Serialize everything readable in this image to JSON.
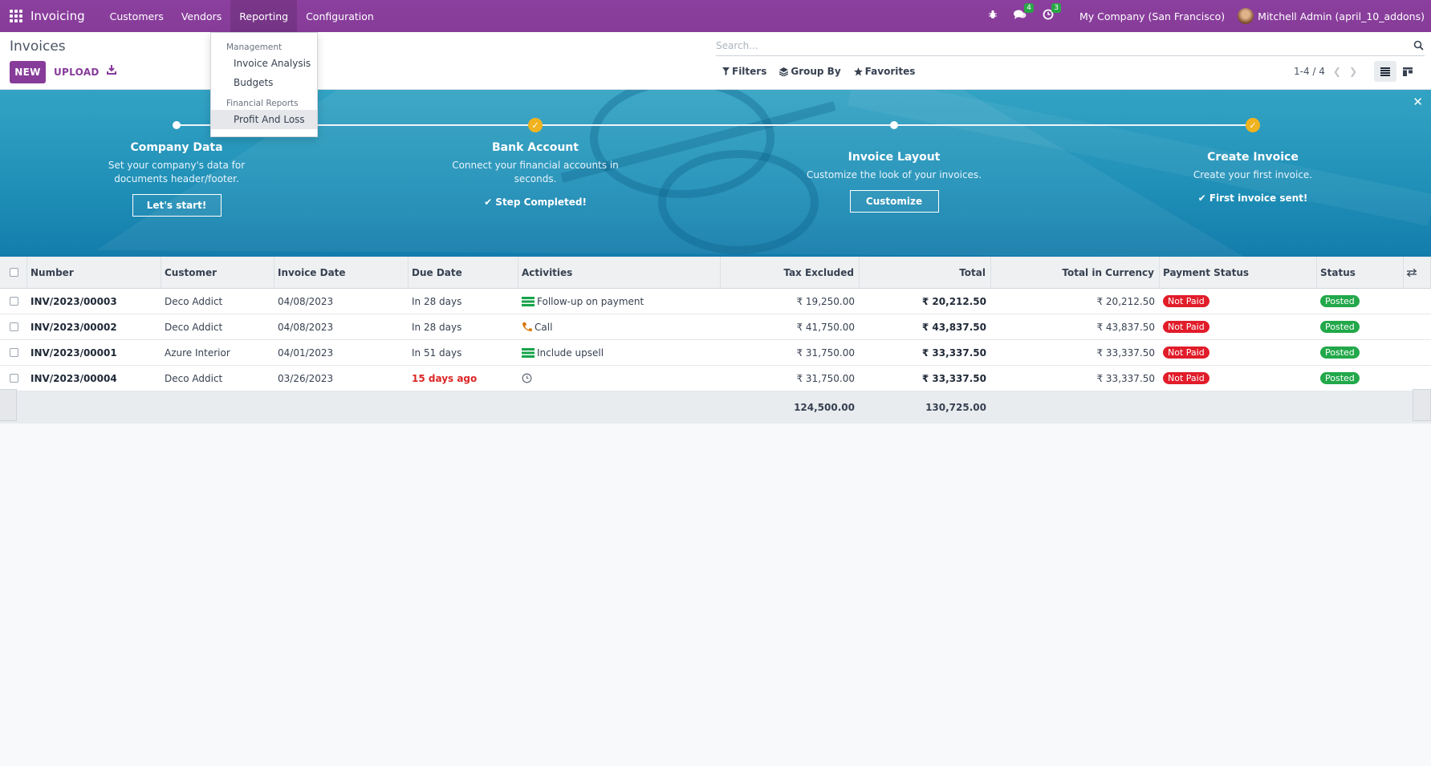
{
  "nav": {
    "app_name": "Invoicing",
    "menu": [
      "Customers",
      "Vendors",
      "Reporting",
      "Configuration"
    ],
    "messages_count": "4",
    "activities_count": "3",
    "company": "My Company (San Francisco)",
    "user": "Mitchell Admin (april_10_addons)"
  },
  "dropdown": {
    "section1": "Management",
    "items1": [
      "Invoice Analysis",
      "Budgets"
    ],
    "section2": "Financial Reports",
    "items2": [
      "Profit And Loss"
    ]
  },
  "control": {
    "title": "Invoices",
    "new_label": "NEW",
    "upload_label": "UPLOAD",
    "search_placeholder": "Search...",
    "filters_label": "Filters",
    "groupby_label": "Group By",
    "favorites_label": "Favorites",
    "pager": "1-4 / 4"
  },
  "onboarding": {
    "steps": [
      {
        "title": "Company Data",
        "desc": "Set your company's data for documents header/footer.",
        "action": "Let's start!"
      },
      {
        "title": "Bank Account",
        "desc": "Connect your financial accounts in seconds.",
        "action": "Step Completed!"
      },
      {
        "title": "Invoice Layout",
        "desc": "Customize the look of your invoices.",
        "action": "Customize"
      },
      {
        "title": "Create Invoice",
        "desc": "Create your first invoice.",
        "action": "First invoice sent!"
      }
    ]
  },
  "table": {
    "headers": [
      "Number",
      "Customer",
      "Invoice Date",
      "Due Date",
      "Activities",
      "Tax Excluded",
      "Total",
      "Total in Currency",
      "Payment Status",
      "Status"
    ],
    "rows": [
      {
        "number": "INV/2023/00003",
        "customer": "Deco Addict",
        "date": "04/08/2023",
        "due": "In 28 days",
        "activity": "Follow-up on payment",
        "tax": "₹ 19,250.00",
        "total": "₹ 20,212.50",
        "currency": "₹ 20,212.50",
        "payment": "Not Paid",
        "status": "Posted"
      },
      {
        "number": "INV/2023/00002",
        "customer": "Deco Addict",
        "date": "04/08/2023",
        "due": "In 28 days",
        "activity": "Call",
        "tax": "₹ 41,750.00",
        "total": "₹ 43,837.50",
        "currency": "₹ 43,837.50",
        "payment": "Not Paid",
        "status": "Posted"
      },
      {
        "number": "INV/2023/00001",
        "customer": "Azure Interior",
        "date": "04/01/2023",
        "due": "In 51 days",
        "activity": "Include upsell",
        "tax": "₹ 31,750.00",
        "total": "₹ 33,337.50",
        "currency": "₹ 33,337.50",
        "payment": "Not Paid",
        "status": "Posted"
      },
      {
        "number": "INV/2023/00004",
        "customer": "Deco Addict",
        "date": "03/26/2023",
        "due": "15 days ago",
        "activity": "",
        "tax": "₹ 31,750.00",
        "total": "₹ 33,337.50",
        "currency": "₹ 33,337.50",
        "payment": "Not Paid",
        "status": "Posted"
      }
    ],
    "totals": {
      "tax": "124,500.00",
      "total": "130,725.00"
    }
  }
}
